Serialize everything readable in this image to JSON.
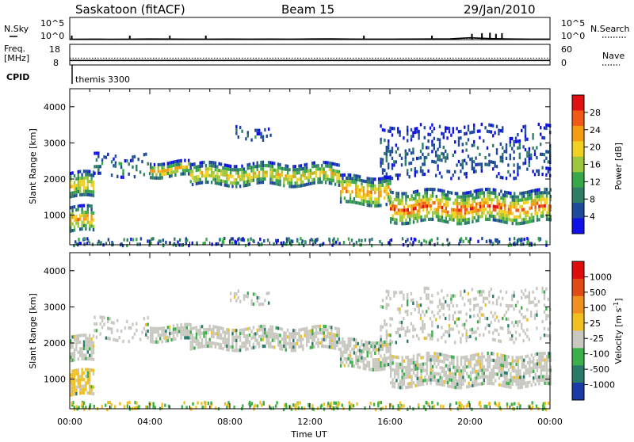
{
  "header": {
    "station": "Saskatoon (fitACF)",
    "beam": "Beam 15",
    "date": "29/Jan/2010"
  },
  "top_panels": {
    "nsky_label": "N.Sky",
    "nsearch_label": "N.Search",
    "noise_tick_top": "10^5",
    "noise_tick_bottom": "10^0",
    "freq_label": "Freq.",
    "freq_unit": "[MHz]",
    "freq_ticks": [
      "18",
      "8"
    ],
    "nave_label": "Nave",
    "nave_ticks": [
      "60",
      "0"
    ],
    "cpid_label": "CPID",
    "cpid_value": "themis 3300"
  },
  "colors": {
    "power_scale": [
      "#1010e8",
      "#1f4a9a",
      "#2e7d67",
      "#37a84a",
      "#9cc73a",
      "#f0d020",
      "#f39c12",
      "#f05a16",
      "#e01010"
    ],
    "velocity_scale": [
      "#1a3aa8",
      "#2a7a6a",
      "#3bb04a",
      "#c8c8c0",
      "#f0c020",
      "#f09020",
      "#e04a14",
      "#e00c0c"
    ]
  },
  "chart_data": [
    {
      "type": "line",
      "name": "noise",
      "series": [
        {
          "name": "N.Sky",
          "values": [
            1.2,
            1.3,
            1.25,
            1.3,
            1.4,
            1.35,
            1.3,
            1.3,
            1.35,
            1.3,
            1.35,
            1.3,
            1.4,
            1.45,
            1.35,
            1.3,
            1.3,
            1.35,
            1.4,
            1.5,
            2.6,
            1.7,
            1.4,
            1.3,
            1.3
          ]
        },
        {
          "name": "N.Search",
          "values": [
            1.0,
            1.1,
            1.05,
            1.1,
            1.2,
            1.1,
            1.1,
            1.1,
            1.1,
            1.1,
            1.1,
            1.1,
            1.2,
            1.2,
            1.1,
            1.1,
            1.1,
            1.1,
            1.2,
            1.3,
            2.1,
            1.4,
            1.2,
            1.1,
            1.1
          ]
        }
      ],
      "x": [
        0,
        1,
        2,
        3,
        4,
        5,
        6,
        7,
        8,
        9,
        10,
        11,
        12,
        13,
        14,
        15,
        16,
        17,
        18,
        19,
        20,
        21,
        22,
        23,
        24
      ],
      "spikes_hours": [
        0.1,
        3.0,
        5.0,
        6.8,
        14.7,
        18.1,
        20.1,
        20.6,
        21.0,
        21.3,
        21.6
      ],
      "yscale": "log",
      "ylim": [
        1,
        100000
      ]
    },
    {
      "type": "line",
      "name": "frequency_nave",
      "frequency_mhz": 10.2,
      "nave": 20,
      "freq_ylim": [
        8,
        18
      ],
      "nave_ylim": [
        0,
        60
      ]
    },
    {
      "type": "heatmap",
      "name": "power",
      "title": "Power [dB]",
      "ylabel": "Slant Range [km]",
      "xlabel": "Time UT",
      "xlim": [
        0,
        24
      ],
      "ylim": [
        180,
        4500
      ],
      "colorbar_ticks": [
        "28",
        "24",
        "20",
        "16",
        "12",
        "8",
        "4"
      ],
      "colorbar_range": [
        0,
        32
      ],
      "bands": [
        {
          "t0": 0.0,
          "t1": 1.2,
          "r_lo": 1500,
          "r_hi": 2200,
          "peak": 22
        },
        {
          "t0": 0.0,
          "t1": 1.2,
          "r_lo": 550,
          "r_hi": 1250,
          "peak": 24
        },
        {
          "t0": 1.2,
          "t1": 4.0,
          "r_lo": 2100,
          "r_hi": 2700,
          "peak": 10
        },
        {
          "t0": 4.0,
          "t1": 6.0,
          "r_lo": 2100,
          "r_hi": 2500,
          "peak": 24
        },
        {
          "t0": 6.0,
          "t1": 13.5,
          "r_lo": 1850,
          "r_hi": 2450,
          "peak": 22
        },
        {
          "t0": 13.5,
          "t1": 16.0,
          "r_lo": 1350,
          "r_hi": 2100,
          "peak": 26
        },
        {
          "t0": 16.0,
          "t1": 24.0,
          "r_lo": 800,
          "r_hi": 1700,
          "peak": 28
        },
        {
          "t0": 8.0,
          "t1": 10.0,
          "r_lo": 3150,
          "r_hi": 3450,
          "peak": 8
        },
        {
          "t0": 15.5,
          "t1": 24.0,
          "r_lo": 2100,
          "r_hi": 3500,
          "peak": 6
        }
      ]
    },
    {
      "type": "heatmap",
      "name": "velocity",
      "title": "Velocity [m s^-1]",
      "ylabel": "Slant Range [km]",
      "xlabel": "Time UT",
      "xlim": [
        0,
        24
      ],
      "ylim": [
        180,
        4500
      ],
      "colorbar_ticks": [
        "1000",
        "500",
        "100",
        "25",
        "-25",
        "-100",
        "-500",
        "-1000"
      ],
      "x_tick_labels": [
        "00:00",
        "04:00",
        "08:00",
        "12:00",
        "16:00",
        "20:00",
        "00:00"
      ],
      "y_tick_labels": [
        "1000",
        "2000",
        "3000",
        "4000"
      ]
    }
  ]
}
